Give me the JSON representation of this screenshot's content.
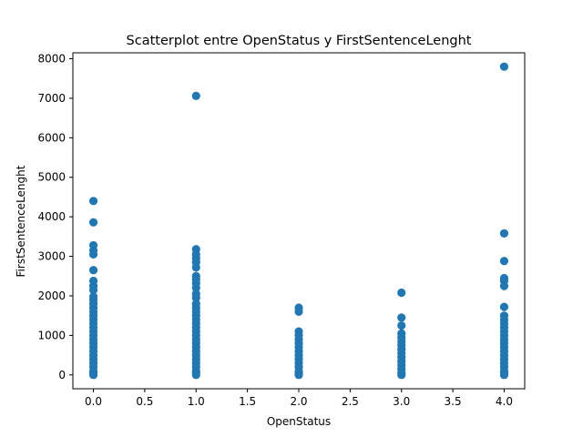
{
  "chart_data": {
    "type": "scatter",
    "title": "Scatterplot entre OpenStatus y FirstSentenceLenght",
    "xlabel": "OpenStatus",
    "ylabel": "FirstSentenceLenght",
    "xlim": [
      -0.2,
      4.2
    ],
    "ylim": [
      -350,
      8150
    ],
    "xticks": [
      0.0,
      0.5,
      1.0,
      1.5,
      2.0,
      2.5,
      3.0,
      3.5,
      4.0
    ],
    "xtick_labels": [
      "0.0",
      "0.5",
      "1.0",
      "1.5",
      "2.0",
      "2.5",
      "3.0",
      "3.5",
      "4.0"
    ],
    "yticks": [
      0,
      1000,
      2000,
      3000,
      4000,
      5000,
      6000,
      7000,
      8000
    ],
    "ytick_labels": [
      "0",
      "1000",
      "2000",
      "3000",
      "4000",
      "5000",
      "6000",
      "7000",
      "8000"
    ],
    "grid": false,
    "marker_color": "#1f77b4",
    "series": [
      {
        "values_by_x": [
          {
            "x": 0,
            "y": [
              4400,
              3860,
              3280,
              3150,
              3050,
              2650,
              2380,
              2250,
              2150,
              1980,
              1900,
              1800,
              1700,
              1600,
              1500,
              1400,
              1300,
              1200,
              1100,
              1000,
              900,
              800,
              700,
              600,
              500,
              400,
              300,
              200,
              100,
              50,
              0
            ]
          },
          {
            "x": 1,
            "y": [
              7060,
              3180,
              3050,
              2950,
              2850,
              2720,
              2500,
              2420,
              2320,
              2200,
              2050,
              1950,
              1800,
              1700,
              1600,
              1500,
              1400,
              1300,
              1200,
              1100,
              1000,
              900,
              800,
              700,
              600,
              500,
              400,
              300,
              200,
              100,
              50,
              0
            ]
          },
          {
            "x": 2,
            "y": [
              1700,
              1600,
              1100,
              1000,
              900,
              800,
              700,
              600,
              500,
              400,
              300,
              200,
              100,
              50,
              0
            ]
          },
          {
            "x": 3,
            "y": [
              2080,
              1450,
              1250,
              1050,
              950,
              850,
              750,
              650,
              550,
              450,
              350,
              250,
              150,
              50,
              0
            ]
          },
          {
            "x": 4,
            "y": [
              7800,
              3580,
              2880,
              2450,
              2380,
              2250,
              1720,
              1500,
              1400,
              1300,
              1200,
              1100,
              1000,
              900,
              800,
              700,
              600,
              500,
              400,
              300,
              200,
              100,
              50,
              0
            ]
          }
        ]
      }
    ]
  }
}
